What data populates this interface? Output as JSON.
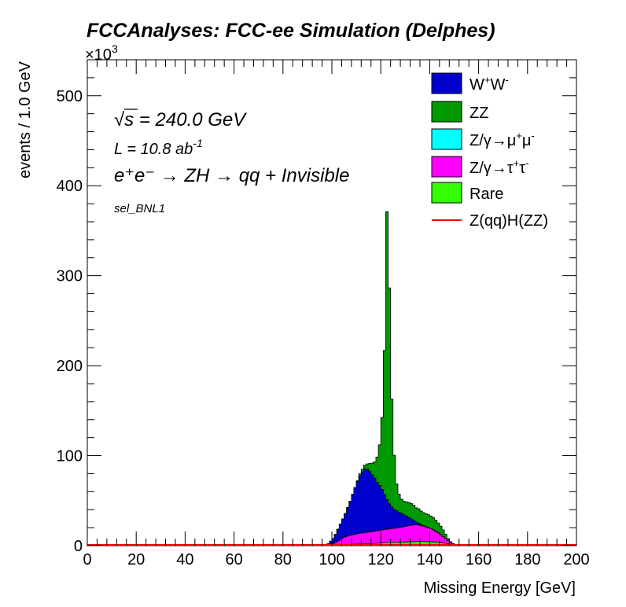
{
  "chart_data": {
    "type": "area",
    "title": "FCCAnalyses: FCC-ee Simulation (Delphes)",
    "xlabel": "Missing Energy [GeV]",
    "ylabel": "events / 1.0 GeV",
    "y_exponent_label": "×10",
    "y_exponent_power": "3",
    "xlim": [
      0,
      200
    ],
    "ylim": [
      0,
      540
    ],
    "x_tick_labels": [
      "0",
      "20",
      "40",
      "60",
      "80",
      "100",
      "120",
      "140",
      "160",
      "180",
      "200"
    ],
    "y_tick_labels": [
      "0",
      "100",
      "200",
      "300",
      "400",
      "500"
    ],
    "bins_x": [
      97,
      98,
      99,
      100,
      101,
      102,
      103,
      104,
      105,
      106,
      107,
      108,
      109,
      110,
      111,
      112,
      113,
      114,
      115,
      116,
      117,
      118,
      119,
      120,
      121,
      122,
      123,
      124,
      125,
      126,
      127,
      128,
      129,
      130,
      131,
      132,
      133,
      134,
      135,
      136,
      137,
      138,
      139,
      140,
      141,
      142,
      143,
      144,
      145,
      146,
      147,
      148,
      149,
      150,
      151
    ],
    "stack_order": [
      "Rare",
      "Z/γ→τ+τ-",
      "Z/γ→μ+μ-",
      "W+W-",
      "ZZ"
    ],
    "series": [
      {
        "name": "Rare",
        "color": "#33ff00",
        "values": [
          0,
          0,
          0,
          0,
          0.5,
          0.8,
          1,
          1.2,
          1.3,
          1.4,
          1.5,
          1.6,
          1.7,
          1.8,
          1.9,
          2,
          2.1,
          2.2,
          2.3,
          2.4,
          2.5,
          2.6,
          2.8,
          3,
          3.2,
          3.3,
          3.4,
          3.5,
          3.6,
          3.7,
          3.8,
          3.9,
          4,
          4.1,
          4.2,
          4.3,
          4.4,
          4.5,
          4.6,
          4.6,
          4.6,
          4.5,
          4.4,
          4.3,
          4.2,
          4.1,
          3.8,
          3.4,
          3,
          2.5,
          2,
          1.5,
          1,
          0.5,
          0
        ]
      },
      {
        "name": "Z/γ→τ+τ-",
        "color": "#ff00ff",
        "values": [
          0,
          0.5,
          1,
          2,
          3,
          4.5,
          6,
          7.5,
          8.5,
          9.2,
          10,
          10.5,
          11,
          11.5,
          12,
          12,
          12.4,
          12.7,
          13,
          13.3,
          13.6,
          13.9,
          14.2,
          14.5,
          14.7,
          14.9,
          15.1,
          15.4,
          15.7,
          16,
          16.4,
          16.8,
          17.2,
          17.6,
          18,
          18.4,
          18.6,
          18.6,
          18.3,
          17.8,
          17.1,
          16.3,
          15.6,
          14.5,
          13.3,
          11.9,
          10.4,
          8.8,
          7.1,
          5.3,
          3.5,
          2,
          1,
          0.4,
          0
        ]
      },
      {
        "name": "Z/γ→μ+μ-",
        "color": "#00ffff",
        "values": [
          0,
          0,
          0,
          0,
          0,
          0,
          0,
          0,
          0,
          0,
          0,
          0,
          0,
          0,
          0,
          0,
          0,
          0,
          0,
          0,
          0,
          0,
          0,
          0,
          0,
          0,
          0,
          0,
          0,
          0,
          0,
          0,
          0,
          0,
          0,
          0,
          0,
          0,
          0,
          0,
          0,
          0,
          0,
          0,
          0,
          0,
          0,
          0,
          0,
          0,
          0,
          0,
          0,
          0,
          0
        ]
      },
      {
        "name": "W+W-",
        "color": "#0000cc",
        "values": [
          0,
          1.5,
          4,
          6,
          9,
          13,
          17,
          21,
          26,
          32,
          38,
          45,
          52,
          58,
          64,
          68,
          71,
          70,
          67,
          63,
          59,
          54,
          50,
          45,
          39,
          33,
          28,
          24,
          21,
          19,
          17,
          15,
          13,
          11,
          9,
          7,
          5,
          3,
          2,
          1,
          0.5,
          0,
          0,
          0,
          0,
          0,
          0,
          0,
          0,
          0,
          0,
          0,
          0,
          0,
          0
        ]
      },
      {
        "name": "ZZ",
        "color": "#009900",
        "values": [
          0,
          0,
          0,
          0,
          0,
          0,
          0,
          0,
          0,
          0,
          0,
          0,
          0,
          1,
          2,
          3,
          4,
          6,
          9,
          13,
          18,
          28,
          45,
          80,
          160,
          320,
          240,
          120,
          60,
          30,
          20,
          16,
          15,
          16,
          17,
          17,
          17,
          16,
          16,
          15,
          14.5,
          14.7,
          14.4,
          14.2,
          13.5,
          12.5,
          11,
          9.5,
          7.5,
          5,
          2.5,
          1,
          0.3,
          0,
          0
        ]
      },
      {
        "name": "Z(qq)H(ZZ)",
        "color": "#ff0000",
        "values": [
          0,
          0,
          0,
          0,
          0,
          0,
          0,
          0,
          0,
          0,
          0,
          0,
          0,
          0,
          0,
          0,
          0,
          0,
          0,
          0,
          0,
          0,
          0,
          0,
          0,
          0,
          0,
          0,
          0,
          0,
          0,
          0,
          0,
          0,
          0,
          0,
          0,
          0,
          0,
          0,
          0,
          0,
          0,
          0,
          0,
          0,
          0,
          0,
          0,
          0,
          0,
          0,
          0,
          0,
          0
        ]
      }
    ],
    "legend_position": "top-right",
    "annotations": {
      "sqrt_s_symbol": "√",
      "sqrt_s_text": "s = 240.0 GeV",
      "lumi": "L = 10.8 ab",
      "lumi_exp": "-1",
      "process": "e⁺e⁻ → ZH → qq + Invisible",
      "selection": "sel_BNL1"
    }
  }
}
